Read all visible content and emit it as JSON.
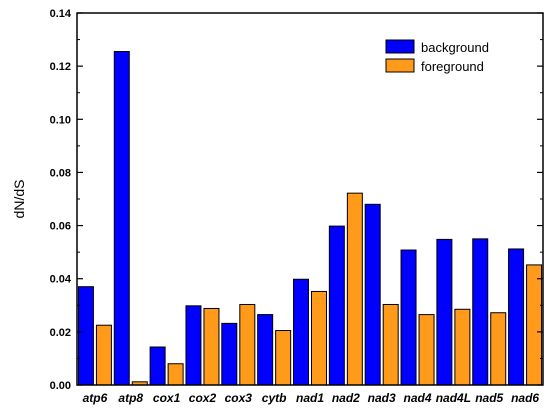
{
  "chart_data": {
    "type": "bar",
    "title": "",
    "xlabel": "",
    "ylabel": "dN/dS",
    "ylim": [
      0,
      0.14
    ],
    "yticks": [
      "0.00",
      "0.02",
      "0.04",
      "0.06",
      "0.08",
      "0.10",
      "0.12",
      "0.14"
    ],
    "grid": false,
    "legend_position": "top-right",
    "categories": [
      "atp6",
      "atp8",
      "cox1",
      "cox2",
      "cox3",
      "cytb",
      "nad1",
      "nad2",
      "nad3",
      "nad4",
      "nad4L",
      "nad5",
      "nad6"
    ],
    "series": [
      {
        "name": "background",
        "color": "#0000ff",
        "values": [
          0.037,
          0.1255,
          0.0143,
          0.0298,
          0.0232,
          0.0265,
          0.0398,
          0.0598,
          0.068,
          0.0508,
          0.0548,
          0.055,
          0.0512
        ]
      },
      {
        "name": "foreground",
        "color": "#ff9a1a",
        "values": [
          0.0225,
          0.0012,
          0.008,
          0.0288,
          0.0303,
          0.0205,
          0.0352,
          0.0722,
          0.0303,
          0.0265,
          0.0285,
          0.0272,
          0.0452
        ]
      }
    ]
  }
}
